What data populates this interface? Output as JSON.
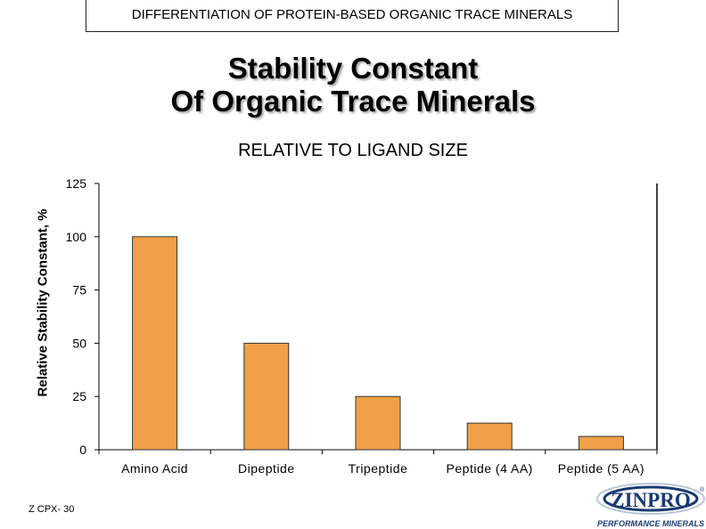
{
  "header": {
    "banner": "DIFFERENTIATION OF PROTEIN-BASED ORGANIC TRACE MINERALS"
  },
  "slide": {
    "title_line1": "Stability Constant",
    "title_line2": "Of Organic Trace Minerals",
    "slide_code": "Z CPX- 30"
  },
  "logo": {
    "brand": "ZINPRO",
    "tagline": "PERFORMANCE MINERALS",
    "mark": "®"
  },
  "colors": {
    "bar_fill": "#F0A048",
    "bar_stroke": "#333333",
    "axis": "#000000"
  },
  "chart_data": {
    "type": "bar",
    "title": "RELATIVE TO LIGAND SIZE",
    "xlabel": "",
    "ylabel": "Relative Stability Constant, %",
    "categories": [
      "Amino Acid",
      "Dipeptide",
      "Tripeptide",
      "Peptide (4 AA)",
      "Peptide (5 AA)"
    ],
    "values": [
      100,
      50,
      25,
      12.5,
      6.25
    ],
    "ylim": [
      0,
      125
    ],
    "yticks": [
      "0",
      "25",
      "50",
      "75",
      "100",
      "125"
    ],
    "grid": false
  }
}
